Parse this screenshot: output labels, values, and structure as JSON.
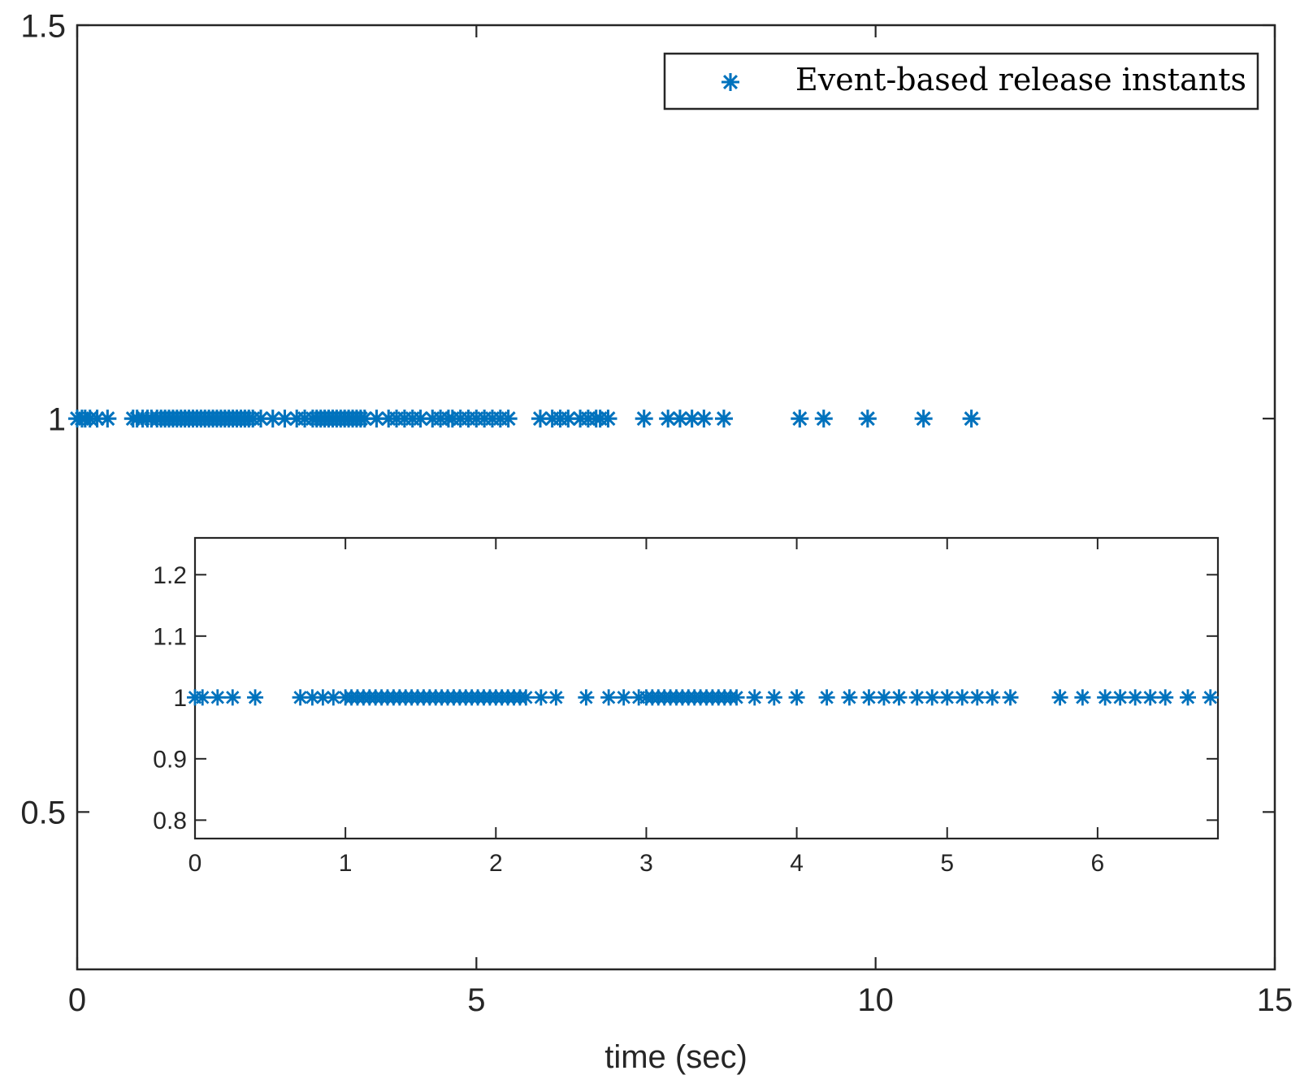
{
  "chart_data": [
    {
      "type": "scatter",
      "xlabel": "time (sec)",
      "ylabel": "",
      "xlim": [
        0,
        15
      ],
      "ylim": [
        0.3,
        1.5
      ],
      "xticks": [
        0,
        5,
        10,
        15
      ],
      "xtick_labels": [
        "0",
        "5",
        "10",
        "15"
      ],
      "yticks": [
        0.5,
        1,
        1.5
      ],
      "ytick_labels": [
        "0.5",
        "1",
        "1.5"
      ],
      "legend": {
        "position": "top-right",
        "entries": [
          "Event-based release instants"
        ]
      },
      "grid": false,
      "color": "#0072BD",
      "series": [
        {
          "name": "Event-based release instants",
          "marker": "asterisk",
          "x": [
            0.0,
            0.06,
            0.1,
            0.16,
            0.25,
            0.38,
            0.7,
            0.75,
            0.82,
            0.88,
            0.93,
            1.0,
            1.05,
            1.1,
            1.15,
            1.2,
            1.25,
            1.3,
            1.35,
            1.4,
            1.45,
            1.5,
            1.55,
            1.6,
            1.65,
            1.7,
            1.75,
            1.8,
            1.85,
            1.9,
            1.95,
            2.0,
            2.05,
            2.1,
            2.15,
            2.2,
            2.3,
            2.45,
            2.6,
            2.75,
            2.85,
            2.95,
            3.0,
            3.05,
            3.1,
            3.15,
            3.2,
            3.25,
            3.3,
            3.35,
            3.4,
            3.45,
            3.5,
            3.55,
            3.6,
            3.75,
            3.9,
            4.0,
            4.1,
            4.2,
            4.3,
            4.45,
            4.55,
            4.65,
            4.7,
            4.8,
            4.9,
            5.0,
            5.1,
            5.2,
            5.3,
            5.4,
            5.8,
            5.95,
            6.05,
            6.15,
            6.3,
            6.4,
            6.5,
            6.55,
            6.65,
            7.1,
            7.4,
            7.55,
            7.7,
            7.85,
            8.1,
            9.05,
            9.35,
            9.9,
            10.6,
            11.2
          ],
          "y": [
            1,
            1,
            1,
            1,
            1,
            1,
            1,
            1,
            1,
            1,
            1,
            1,
            1,
            1,
            1,
            1,
            1,
            1,
            1,
            1,
            1,
            1,
            1,
            1,
            1,
            1,
            1,
            1,
            1,
            1,
            1,
            1,
            1,
            1,
            1,
            1,
            1,
            1,
            1,
            1,
            1,
            1,
            1,
            1,
            1,
            1,
            1,
            1,
            1,
            1,
            1,
            1,
            1,
            1,
            1,
            1,
            1,
            1,
            1,
            1,
            1,
            1,
            1,
            1,
            1,
            1,
            1,
            1,
            1,
            1,
            1,
            1,
            1,
            1,
            1,
            1,
            1,
            1,
            1,
            1,
            1,
            1,
            1,
            1,
            1,
            1,
            1,
            1,
            1,
            1,
            1,
            1
          ]
        }
      ]
    },
    {
      "type": "scatter",
      "inset": true,
      "xlabel": "",
      "ylabel": "",
      "xlim": [
        0,
        6.8
      ],
      "ylim": [
        0.77,
        1.26
      ],
      "xticks": [
        0,
        1,
        2,
        3,
        4,
        5,
        6
      ],
      "xtick_labels": [
        "0",
        "1",
        "2",
        "3",
        "4",
        "5",
        "6"
      ],
      "yticks": [
        0.8,
        0.9,
        1,
        1.1,
        1.2
      ],
      "ytick_labels": [
        "0.8",
        "0.9",
        "1",
        "1.1",
        "1.2"
      ],
      "grid": false,
      "color": "#0072BD",
      "series": [
        {
          "marker": "asterisk",
          "x": [
            0.0,
            0.05,
            0.15,
            0.25,
            0.4,
            0.7,
            0.78,
            0.85,
            0.92,
            1.0,
            1.04,
            1.08,
            1.12,
            1.16,
            1.2,
            1.24,
            1.28,
            1.32,
            1.36,
            1.4,
            1.44,
            1.48,
            1.52,
            1.56,
            1.6,
            1.64,
            1.68,
            1.72,
            1.76,
            1.8,
            1.84,
            1.88,
            1.92,
            1.96,
            2.0,
            2.04,
            2.08,
            2.12,
            2.16,
            2.2,
            2.3,
            2.4,
            2.6,
            2.75,
            2.85,
            2.95,
            3.0,
            3.04,
            3.08,
            3.12,
            3.16,
            3.2,
            3.24,
            3.28,
            3.32,
            3.36,
            3.4,
            3.44,
            3.48,
            3.52,
            3.56,
            3.6,
            3.72,
            3.85,
            4.0,
            4.2,
            4.35,
            4.48,
            4.58,
            4.68,
            4.8,
            4.9,
            5.0,
            5.1,
            5.2,
            5.3,
            5.42,
            5.75,
            5.9,
            6.05,
            6.15,
            6.25,
            6.35,
            6.45,
            6.6,
            6.75
          ],
          "y": [
            1,
            1,
            1,
            1,
            1,
            1,
            1,
            1,
            1,
            1,
            1,
            1,
            1,
            1,
            1,
            1,
            1,
            1,
            1,
            1,
            1,
            1,
            1,
            1,
            1,
            1,
            1,
            1,
            1,
            1,
            1,
            1,
            1,
            1,
            1,
            1,
            1,
            1,
            1,
            1,
            1,
            1,
            1,
            1,
            1,
            1,
            1,
            1,
            1,
            1,
            1,
            1,
            1,
            1,
            1,
            1,
            1,
            1,
            1,
            1,
            1,
            1,
            1,
            1,
            1,
            1,
            1,
            1,
            1,
            1,
            1,
            1,
            1,
            1,
            1,
            1,
            1,
            1,
            1,
            1,
            1,
            1,
            1,
            1,
            1,
            1
          ]
        }
      ]
    }
  ]
}
